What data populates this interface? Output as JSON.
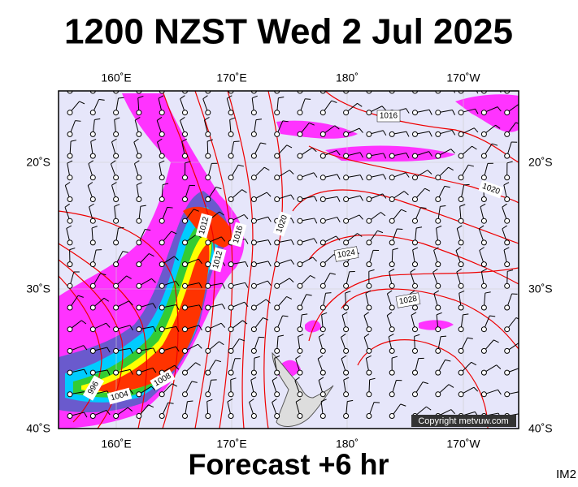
{
  "header": {
    "title": "1200 NZST Wed 2 Jul 2025"
  },
  "map": {
    "top_labels": [
      "160˚E",
      "170˚E",
      "180˚",
      "170˚W"
    ],
    "bottom_labels": [
      "160˚E",
      "170˚E",
      "180˚",
      "170˚W"
    ],
    "left_labels": [
      "20˚S",
      "30˚S",
      "40˚S"
    ],
    "right_labels": [
      "20˚S",
      "30˚S",
      "40˚S"
    ],
    "isobar_labels": [
      "1016",
      "1020",
      "1012",
      "1016",
      "1012",
      "1020",
      "1024",
      "1028",
      "1008",
      "1004",
      "996"
    ],
    "copyright": "Copyright metvuw.com"
  },
  "footer": {
    "caption": "Forecast +6 hr",
    "code": "IM2"
  }
}
